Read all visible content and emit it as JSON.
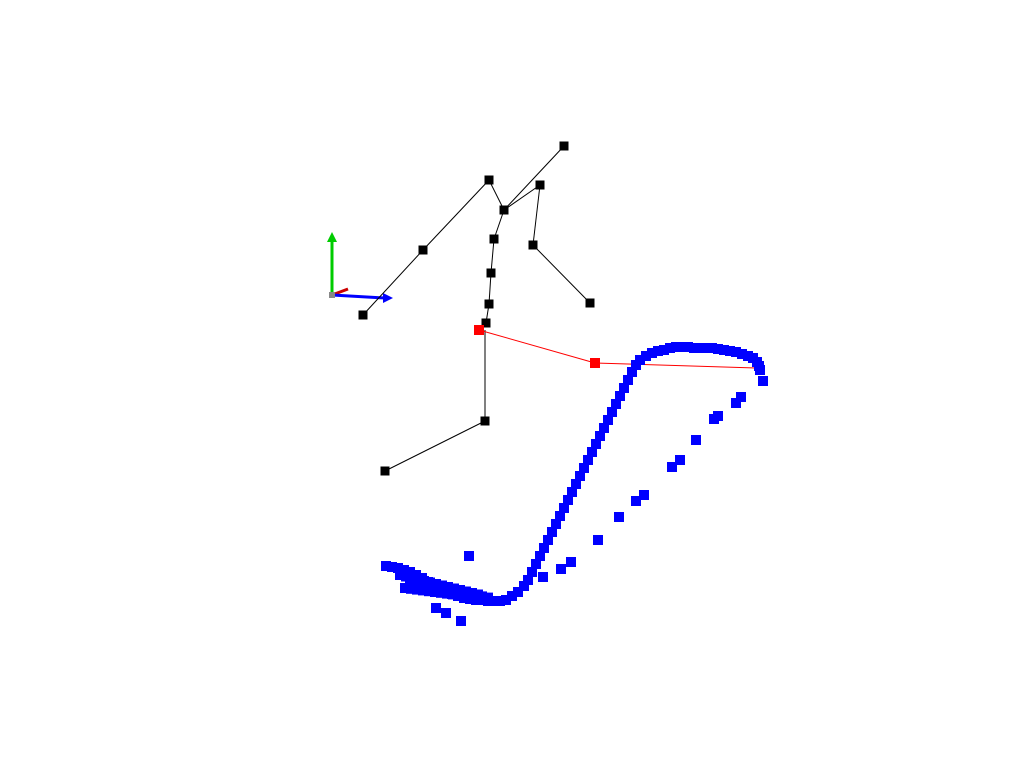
{
  "viewport": {
    "background": "#ffffff"
  },
  "colors": {
    "skeleton": "#000000",
    "selected": "#ff0000",
    "trajectory": "#0000ff",
    "axis_x": "#cc0000",
    "axis_y": "#00cc00",
    "axis_z": "#0000ff",
    "origin": "#888888"
  },
  "icons": {
    "axes_gizmo": "xyz-axes-icon"
  }
}
